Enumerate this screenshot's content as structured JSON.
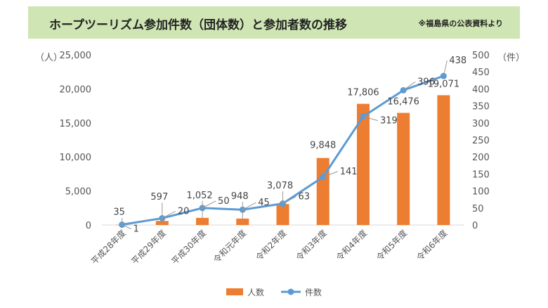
{
  "title": "ホープツーリズム参加件数（団体数）と参加者数の推移",
  "note": "※福島県の公表資料より",
  "colors": {
    "bar": "#ed7d31",
    "line": "#5b9bd5",
    "banner": "#cfe6b4",
    "grid": "#d9d9d9"
  },
  "chart_data": {
    "type": "bar+line",
    "categories": [
      "平成28年度",
      "平成29年度",
      "平成30年度",
      "令和元年度",
      "令和2年度",
      "令和3年度",
      "令和4年度",
      "令和5年度",
      "令和6年度"
    ],
    "series": [
      {
        "name": "人数",
        "type": "bar",
        "axis": "left",
        "values": [
          35,
          597,
          1052,
          948,
          3078,
          9848,
          17806,
          16476,
          19071
        ],
        "labels": [
          "35",
          "597",
          "1,052",
          "948",
          "3,078",
          "9,848",
          "17,806",
          "16,476",
          "19,071"
        ]
      },
      {
        "name": "件数",
        "type": "line",
        "axis": "right",
        "values": [
          1,
          20,
          50,
          45,
          63,
          141,
          319,
          396,
          438
        ],
        "labels": [
          "1",
          "20",
          "50",
          "45",
          "63",
          "141",
          "319",
          "396",
          "438"
        ]
      }
    ],
    "y_left": {
      "unit": "（人）",
      "ylim": [
        0,
        25000
      ],
      "ticks": [
        "0",
        "5,000",
        "10,000",
        "15,000",
        "20,000",
        "25,000"
      ]
    },
    "y_right": {
      "unit": "（件）",
      "ylim": [
        0,
        500
      ],
      "ticks": [
        "0",
        "50",
        "100",
        "150",
        "200",
        "250",
        "300",
        "350",
        "400",
        "450",
        "500"
      ]
    },
    "grid": false,
    "legend_position": "bottom"
  }
}
